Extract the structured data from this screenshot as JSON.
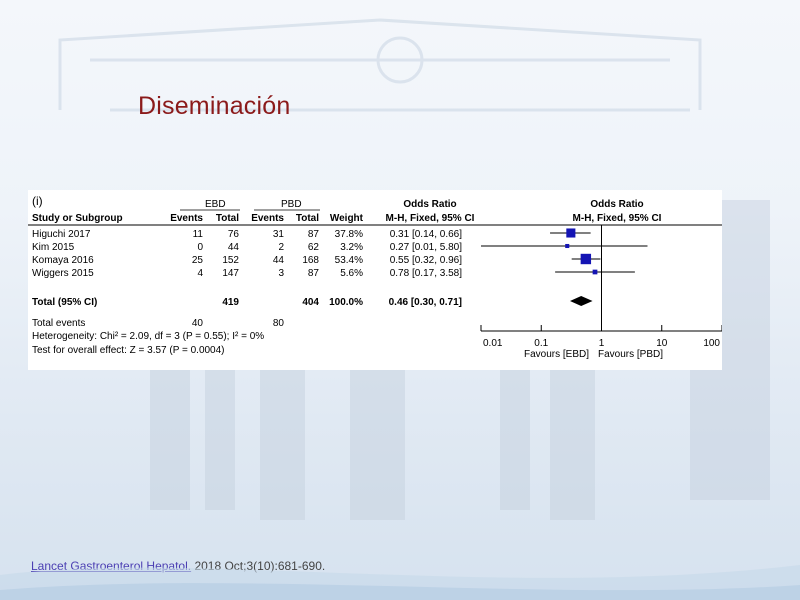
{
  "slide": {
    "title": "Diseminación",
    "reference_link": "Lancet Gastroenterol Hepatol.",
    "reference_rest": " 2018 Oct;3(10):681-690."
  },
  "chart_data": {
    "type": "forest",
    "panel_label": "(i)",
    "group1_label": "EBD",
    "group2_label": "PBD",
    "col_study": "Study or Subgroup",
    "col_events": "Events",
    "col_total": "Total",
    "col_weight": "Weight",
    "or_header": "Odds Ratio",
    "or_method": "M-H, Fixed, 95% CI",
    "studies": [
      {
        "name": "Higuchi 2017",
        "e1": "11",
        "t1": "76",
        "e2": "31",
        "t2": "87",
        "weight": "37.8%",
        "ci_text": "0.31 [0.14, 0.66]",
        "or": 0.31,
        "lo": 0.14,
        "hi": 0.66,
        "w": 37.8
      },
      {
        "name": "Kim 2015",
        "e1": "0",
        "t1": "44",
        "e2": "2",
        "t2": "62",
        "weight": "3.2%",
        "ci_text": "0.27 [0.01, 5.80]",
        "or": 0.27,
        "lo": 0.01,
        "hi": 5.8,
        "w": 3.2
      },
      {
        "name": "Komaya 2016",
        "e1": "25",
        "t1": "152",
        "e2": "44",
        "t2": "168",
        "weight": "53.4%",
        "ci_text": "0.55 [0.32, 0.96]",
        "or": 0.55,
        "lo": 0.32,
        "hi": 0.96,
        "w": 53.4
      },
      {
        "name": "Wiggers 2015",
        "e1": "4",
        "t1": "147",
        "e2": "3",
        "t2": "87",
        "weight": "5.6%",
        "ci_text": "0.78 [0.17, 3.58]",
        "or": 0.78,
        "lo": 0.17,
        "hi": 3.58,
        "w": 5.6
      }
    ],
    "total": {
      "name": "Total (95% CI)",
      "t1": "419",
      "t2": "404",
      "weight": "100.0%",
      "ci_text": "0.46 [0.30, 0.71]",
      "or": 0.46,
      "lo": 0.3,
      "hi": 0.71
    },
    "total_events": {
      "name": "Total events",
      "e1": "40",
      "e2": "80"
    },
    "heterogeneity": "Heterogeneity: Chi² = 2.09, df = 3 (P = 0.55); I² = 0%",
    "overall_effect": "Test for overall effect: Z = 3.57 (P = 0.0004)",
    "axis": {
      "scale": "log",
      "range": [
        0.01,
        100
      ],
      "ticks": [
        0.01,
        0.1,
        1,
        10,
        100
      ],
      "tick_labels": [
        "0.01",
        "0.1",
        "1",
        "10",
        "100"
      ],
      "favours_left": "Favours [EBD]",
      "favours_right": "Favours [PBD]"
    },
    "colors": {
      "marker": "#1414b4",
      "diamond": "#000000"
    }
  }
}
